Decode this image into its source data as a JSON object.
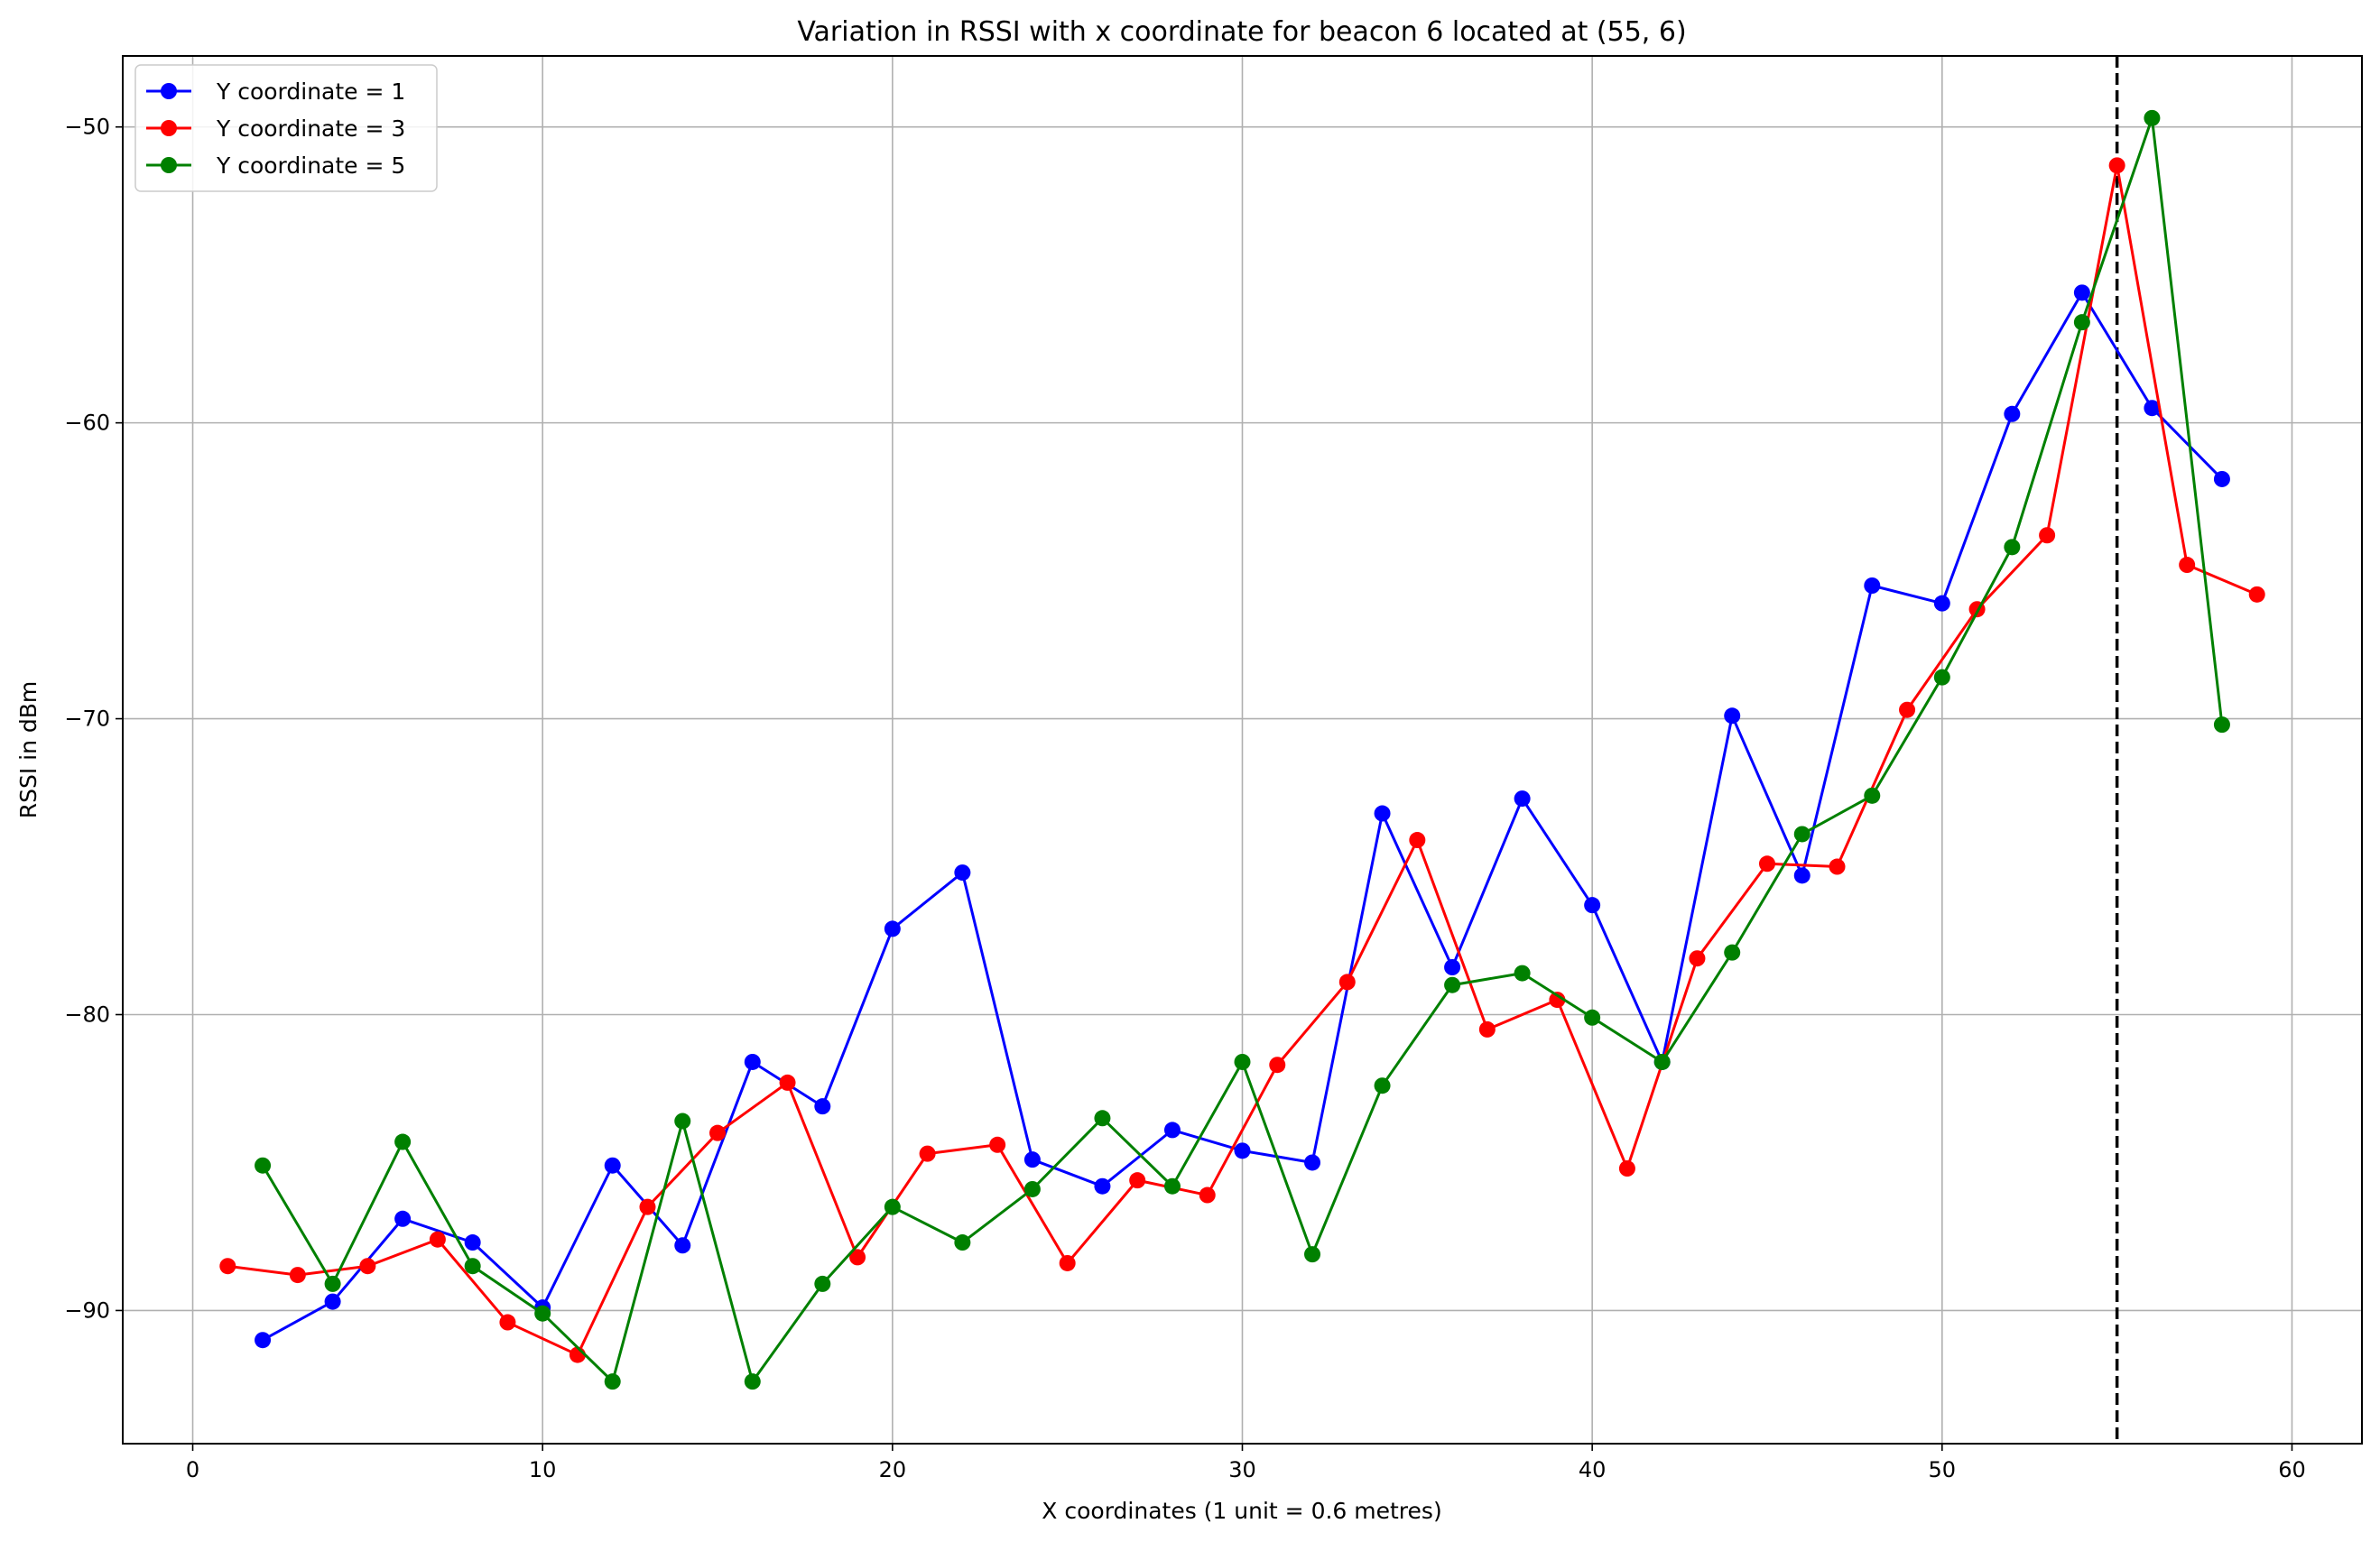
{
  "chart_data": {
    "type": "line",
    "title": "Variation in RSSI with x coordinate for beacon 6 located at (55, 6)",
    "xlabel": "X coordinates (1 unit = 0.6 metres)",
    "ylabel": "RSSI in dBm",
    "xlim": [
      -2,
      62
    ],
    "ylim": [
      -94.5,
      -47.6
    ],
    "xticks": [
      0,
      10,
      20,
      30,
      40,
      50,
      60
    ],
    "xtick_labels": [
      "0",
      "10",
      "20",
      "30",
      "40",
      "50",
      "60"
    ],
    "yticks": [
      -90,
      -80,
      -70,
      -60,
      -50
    ],
    "ytick_labels": [
      "−90",
      "−80",
      "−70",
      "−60",
      "−50"
    ],
    "grid": true,
    "legend_position": "top-left",
    "vline": {
      "x": 55,
      "style": "dashed",
      "color": "#000000"
    },
    "series": [
      {
        "name": "Y coordinate = 1",
        "color": "#0000ff",
        "x": [
          2,
          4,
          6,
          8,
          10,
          12,
          14,
          16,
          18,
          20,
          22,
          24,
          26,
          28,
          30,
          32,
          34,
          36,
          38,
          40,
          42,
          44,
          46,
          48,
          50,
          52,
          54,
          56,
          58
        ],
        "y": [
          -91.0,
          -89.7,
          -86.9,
          -87.7,
          -89.9,
          -85.1,
          -87.8,
          -81.6,
          -83.1,
          -77.1,
          -75.2,
          -84.9,
          -85.8,
          -83.9,
          -84.6,
          -85.0,
          -73.2,
          -78.4,
          -72.7,
          -76.3,
          -81.6,
          -69.9,
          -75.3,
          -65.5,
          -66.1,
          -59.7,
          -55.6,
          -59.5,
          -61.9
        ]
      },
      {
        "name": "Y coordinate = 3",
        "color": "#ff0000",
        "x": [
          1,
          3,
          5,
          7,
          9,
          11,
          13,
          15,
          17,
          19,
          21,
          23,
          25,
          27,
          29,
          31,
          33,
          35,
          37,
          39,
          41,
          43,
          45,
          47,
          49,
          51,
          53,
          55,
          57,
          59
        ],
        "y": [
          -88.5,
          -88.8,
          -88.5,
          -87.6,
          -90.4,
          -91.5,
          -86.5,
          -84.0,
          -82.3,
          -88.2,
          -84.7,
          -84.4,
          -88.4,
          -85.6,
          -86.1,
          -81.7,
          -78.9,
          -74.1,
          -80.5,
          -79.5,
          -85.2,
          -78.1,
          -74.9,
          -75.0,
          -69.7,
          -66.3,
          -63.8,
          -51.3,
          -64.8,
          -65.8
        ]
      },
      {
        "name": "Y coordinate = 5",
        "color": "#008000",
        "x": [
          2,
          4,
          6,
          8,
          10,
          12,
          14,
          16,
          18,
          20,
          22,
          24,
          26,
          28,
          30,
          32,
          34,
          36,
          38,
          40,
          42,
          44,
          46,
          48,
          50,
          52,
          54,
          56,
          58
        ],
        "y": [
          -85.1,
          -89.1,
          -84.3,
          -88.5,
          -90.1,
          -92.4,
          -83.6,
          -92.4,
          -89.1,
          -86.5,
          -87.7,
          -85.9,
          -83.5,
          -85.8,
          -81.6,
          -88.1,
          -82.4,
          -79.0,
          -78.6,
          -80.1,
          -81.6,
          -77.9,
          -73.9,
          -72.6,
          -68.6,
          -64.2,
          -56.6,
          -49.7,
          -70.2
        ]
      }
    ]
  }
}
